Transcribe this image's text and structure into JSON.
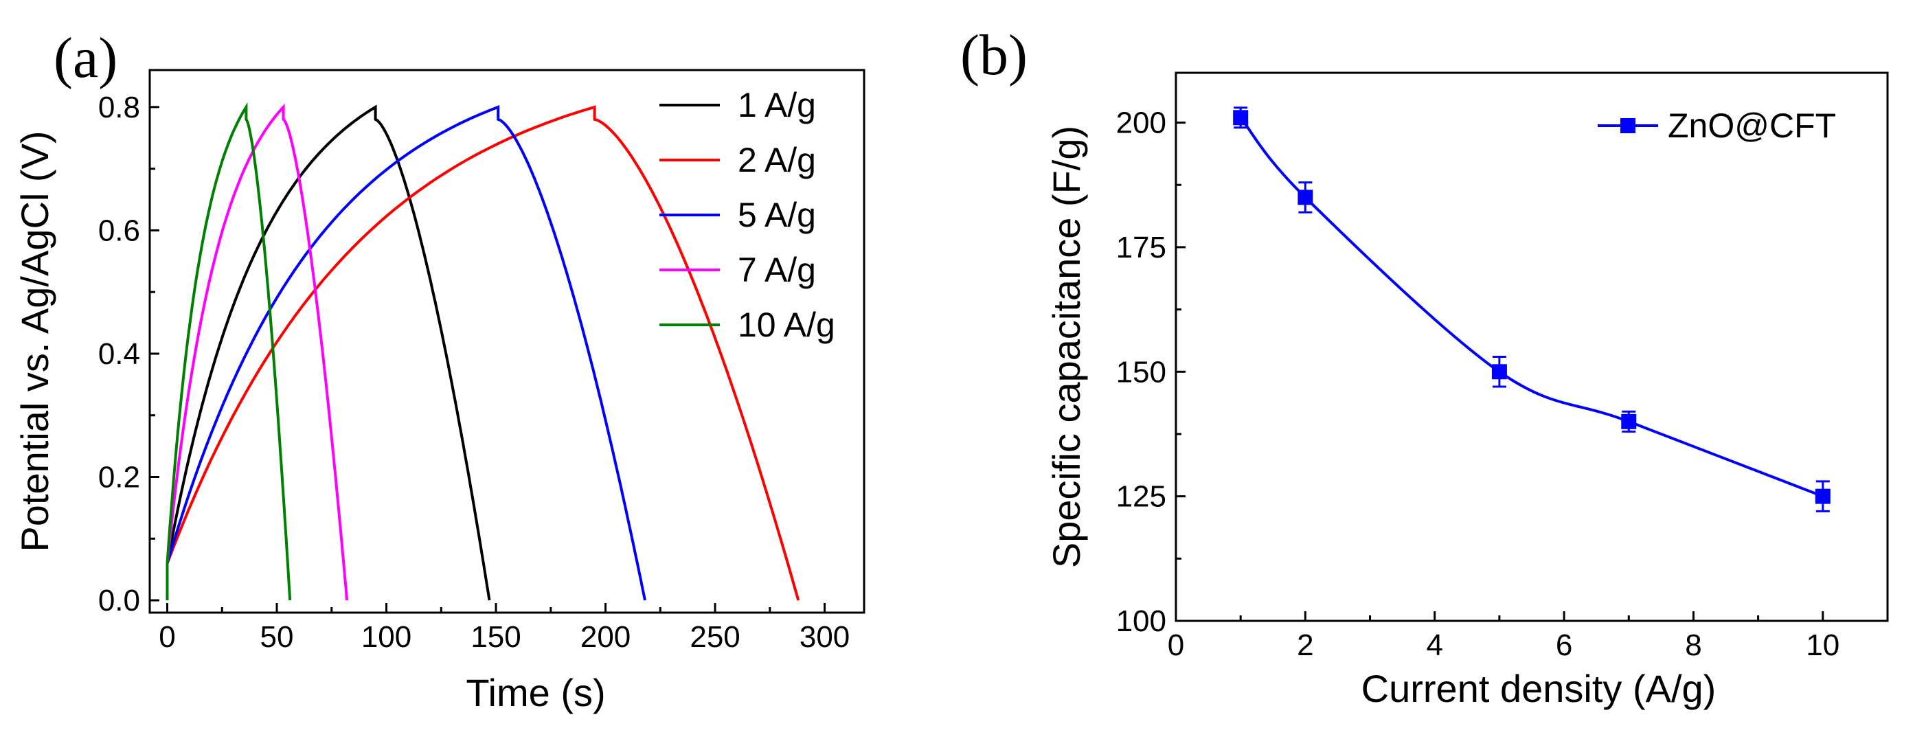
{
  "chart_data": [
    {
      "panel_label": "(a)",
      "type": "line",
      "title": "",
      "xlabel": "Time (s)",
      "ylabel": "Potential vs. Ag/AgCl (V)",
      "xlim": [
        -8,
        318
      ],
      "ylim": [
        -0.02,
        0.86
      ],
      "xticks": [
        0,
        50,
        100,
        150,
        200,
        250,
        300
      ],
      "xtick_labels": [
        "0",
        "50",
        "100",
        "150",
        "200",
        "250",
        "300"
      ],
      "yticks": [
        0.0,
        0.2,
        0.4,
        0.6,
        0.8
      ],
      "ytick_labels": [
        "0.0",
        "0.2",
        "0.4",
        "0.6",
        "0.8"
      ],
      "legend_position": "top-right",
      "series": [
        {
          "name": "1 A/g",
          "color": "#000000",
          "charge_end_s": 95,
          "discharge_end_s": 147,
          "v_max": 0.8
        },
        {
          "name": "2 A/g",
          "color": "#ff0000",
          "charge_end_s": 195,
          "discharge_end_s": 288,
          "v_max": 0.8
        },
        {
          "name": "5 A/g",
          "color": "#0000ff",
          "charge_end_s": 151,
          "discharge_end_s": 218,
          "v_max": 0.8
        },
        {
          "name": "7 A/g",
          "color": "#ff00ff",
          "charge_end_s": 53,
          "discharge_end_s": 82,
          "v_max": 0.8
        },
        {
          "name": "10 A/g",
          "color": "#008000",
          "charge_end_s": 36,
          "discharge_end_s": 56,
          "v_max": 0.8
        }
      ]
    },
    {
      "panel_label": "(b)",
      "type": "line",
      "title": "",
      "xlabel": "Current density (A/g)",
      "ylabel": "Specific capacitance (F/g)",
      "xlim": [
        0,
        11
      ],
      "ylim": [
        100,
        210
      ],
      "xticks": [
        0,
        2,
        4,
        6,
        8,
        10
      ],
      "xtick_labels": [
        "0",
        "2",
        "4",
        "6",
        "8",
        "10"
      ],
      "yticks": [
        100,
        125,
        150,
        175,
        200
      ],
      "ytick_labels": [
        "100",
        "125",
        "150",
        "175",
        "200"
      ],
      "legend_position": "top-right",
      "series": [
        {
          "name": "ZnO@CFT",
          "color": "#0000ff",
          "marker": "square",
          "x": [
            1,
            2,
            5,
            7,
            10
          ],
          "y": [
            201,
            185,
            150,
            140,
            125
          ],
          "error": [
            2,
            3,
            3,
            2,
            3
          ]
        }
      ]
    }
  ]
}
